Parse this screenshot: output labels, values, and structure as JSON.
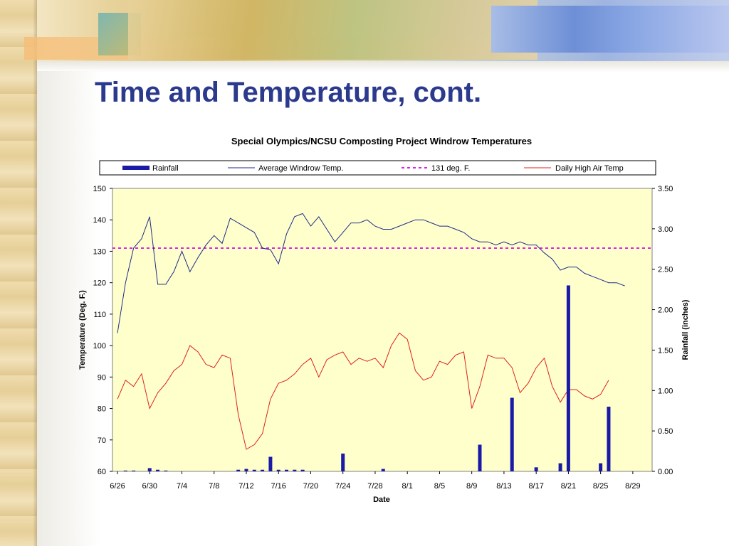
{
  "slide": {
    "title": "Time and Temperature, cont."
  },
  "colors": {
    "title": "#2b3a8c",
    "plot_background": "#ffffcc",
    "rainfall": "#1a1aa6",
    "avg_windrow": "#1f2a8a",
    "threshold": "#e020e0",
    "air_temp": "#e02020"
  },
  "chart_data": {
    "type": "line",
    "title": "Special Olympics/NCSU Composting Project Windrow Temperatures",
    "xlabel": "Date",
    "ylabel": "Temperature (Deg. F.)",
    "y2label": "Rainfall (inches)",
    "ylim": [
      60,
      150
    ],
    "y_ticks": [
      "60",
      "70",
      "80",
      "90",
      "100",
      "110",
      "120",
      "130",
      "140",
      "150"
    ],
    "y2lim": [
      0,
      3.5
    ],
    "y2_ticks": [
      "0.00",
      "0.50",
      "1.00",
      "1.50",
      "2.00",
      "2.50",
      "3.00",
      "3.50"
    ],
    "x_start": "6/26",
    "x_end": "8/29",
    "x_ticks": [
      "6/26",
      "6/30",
      "7/4",
      "7/8",
      "7/12",
      "7/16",
      "7/20",
      "7/24",
      "7/28",
      "8/1",
      "8/5",
      "8/9",
      "8/13",
      "8/17",
      "8/21",
      "8/25",
      "8/29"
    ],
    "legend_position": "top",
    "grid": false,
    "legend": [
      "Rainfall",
      "Average Windrow Temp.",
      "131 deg. F.",
      "Daily High Air Temp"
    ],
    "threshold": 131,
    "series": [
      {
        "name": "Average Windrow Temp.",
        "type": "line",
        "axis": "left",
        "points": [
          [
            "6/26",
            104
          ],
          [
            "6/27",
            120
          ],
          [
            "6/28",
            131
          ],
          [
            "6/29",
            134
          ],
          [
            "6/30",
            141
          ],
          [
            "7/1",
            119.5
          ],
          [
            "7/2",
            119.5
          ],
          [
            "7/3",
            123.5
          ],
          [
            "7/4",
            130
          ],
          [
            "7/5",
            123.5
          ],
          [
            "7/6",
            128
          ],
          [
            "7/7",
            132
          ],
          [
            "7/8",
            135
          ],
          [
            "7/9",
            132.5
          ],
          [
            "7/10",
            140.5
          ],
          [
            "7/11",
            139
          ],
          [
            "7/12",
            137.5
          ],
          [
            "7/13",
            136
          ],
          [
            "7/14",
            131
          ],
          [
            "7/15",
            130.5
          ],
          [
            "7/16",
            126
          ],
          [
            "7/17",
            135.5
          ],
          [
            "7/18",
            141
          ],
          [
            "7/19",
            142
          ],
          [
            "7/20",
            138
          ],
          [
            "7/21",
            141
          ],
          [
            "7/22",
            137
          ],
          [
            "7/23",
            133
          ],
          [
            "7/24",
            136
          ],
          [
            "7/25",
            139
          ],
          [
            "7/26",
            139
          ],
          [
            "7/27",
            140
          ],
          [
            "7/28",
            138
          ],
          [
            "7/29",
            137
          ],
          [
            "7/30",
            137
          ],
          [
            "7/31",
            138
          ],
          [
            "8/1",
            139
          ],
          [
            "8/2",
            140
          ],
          [
            "8/3",
            140
          ],
          [
            "8/4",
            139
          ],
          [
            "8/5",
            138
          ],
          [
            "8/6",
            138
          ],
          [
            "8/7",
            137
          ],
          [
            "8/8",
            136
          ],
          [
            "8/9",
            134
          ],
          [
            "8/10",
            133
          ],
          [
            "8/11",
            133
          ],
          [
            "8/12",
            132
          ],
          [
            "8/13",
            133
          ],
          [
            "8/14",
            132
          ],
          [
            "8/15",
            133
          ],
          [
            "8/16",
            132
          ],
          [
            "8/17",
            132
          ],
          [
            "8/18",
            129.5
          ],
          [
            "8/19",
            127.5
          ],
          [
            "8/20",
            124
          ],
          [
            "8/21",
            125
          ],
          [
            "8/22",
            125
          ],
          [
            "8/23",
            123
          ],
          [
            "8/24",
            122
          ],
          [
            "8/25",
            121
          ],
          [
            "8/26",
            120
          ],
          [
            "8/27",
            120
          ],
          [
            "8/28",
            119
          ]
        ]
      },
      {
        "name": "Daily High Air Temp",
        "type": "line",
        "axis": "left",
        "points": [
          [
            "6/26",
            83
          ],
          [
            "6/27",
            89
          ],
          [
            "6/28",
            87
          ],
          [
            "6/29",
            91
          ],
          [
            "6/30",
            80
          ],
          [
            "7/1",
            85
          ],
          [
            "7/2",
            88
          ],
          [
            "7/3",
            92
          ],
          [
            "7/4",
            94
          ],
          [
            "7/5",
            100
          ],
          [
            "7/6",
            98
          ],
          [
            "7/7",
            94
          ],
          [
            "7/8",
            93
          ],
          [
            "7/9",
            97
          ],
          [
            "7/10",
            96
          ],
          [
            "7/11",
            78
          ],
          [
            "7/12",
            67
          ],
          [
            "7/13",
            68.5
          ],
          [
            "7/14",
            72
          ],
          [
            "7/15",
            83
          ],
          [
            "7/16",
            88
          ],
          [
            "7/17",
            89
          ],
          [
            "7/18",
            91
          ],
          [
            "7/19",
            94
          ],
          [
            "7/20",
            96
          ],
          [
            "7/21",
            90
          ],
          [
            "7/22",
            95.5
          ],
          [
            "7/23",
            97
          ],
          [
            "7/24",
            98
          ],
          [
            "7/25",
            94
          ],
          [
            "7/26",
            96
          ],
          [
            "7/27",
            95
          ],
          [
            "7/28",
            96
          ],
          [
            "7/29",
            93
          ],
          [
            "7/30",
            100
          ],
          [
            "7/31",
            104
          ],
          [
            "8/1",
            102
          ],
          [
            "8/2",
            92
          ],
          [
            "8/3",
            89
          ],
          [
            "8/4",
            90
          ],
          [
            "8/5",
            95
          ],
          [
            "8/6",
            94
          ],
          [
            "8/7",
            97
          ],
          [
            "8/8",
            98
          ],
          [
            "8/9",
            80
          ],
          [
            "8/10",
            87
          ],
          [
            "8/11",
            97
          ],
          [
            "8/12",
            96
          ],
          [
            "8/13",
            96
          ],
          [
            "8/14",
            93
          ],
          [
            "8/15",
            85
          ],
          [
            "8/16",
            88
          ],
          [
            "8/17",
            93
          ],
          [
            "8/18",
            96
          ],
          [
            "8/19",
            87
          ],
          [
            "8/20",
            82
          ],
          [
            "8/21",
            86
          ],
          [
            "8/22",
            86
          ],
          [
            "8/23",
            84
          ],
          [
            "8/24",
            83
          ],
          [
            "8/25",
            84.5
          ],
          [
            "8/26",
            89
          ]
        ]
      },
      {
        "name": "Rainfall",
        "type": "bar",
        "axis": "right",
        "points": [
          [
            "6/27",
            0.01
          ],
          [
            "6/28",
            0.01
          ],
          [
            "6/30",
            0.04
          ],
          [
            "7/1",
            0.02
          ],
          [
            "7/2",
            0.01
          ],
          [
            "7/11",
            0.02
          ],
          [
            "7/12",
            0.03
          ],
          [
            "7/13",
            0.02
          ],
          [
            "7/14",
            0.02
          ],
          [
            "7/15",
            0.18
          ],
          [
            "7/16",
            0.02
          ],
          [
            "7/17",
            0.02
          ],
          [
            "7/18",
            0.02
          ],
          [
            "7/19",
            0.02
          ],
          [
            "7/24",
            0.22
          ],
          [
            "7/29",
            0.03
          ],
          [
            "8/10",
            0.33
          ],
          [
            "8/14",
            0.91
          ],
          [
            "8/17",
            0.05
          ],
          [
            "8/20",
            0.1
          ],
          [
            "8/21",
            2.3
          ],
          [
            "8/25",
            0.1
          ],
          [
            "8/26",
            0.8
          ]
        ]
      }
    ]
  }
}
